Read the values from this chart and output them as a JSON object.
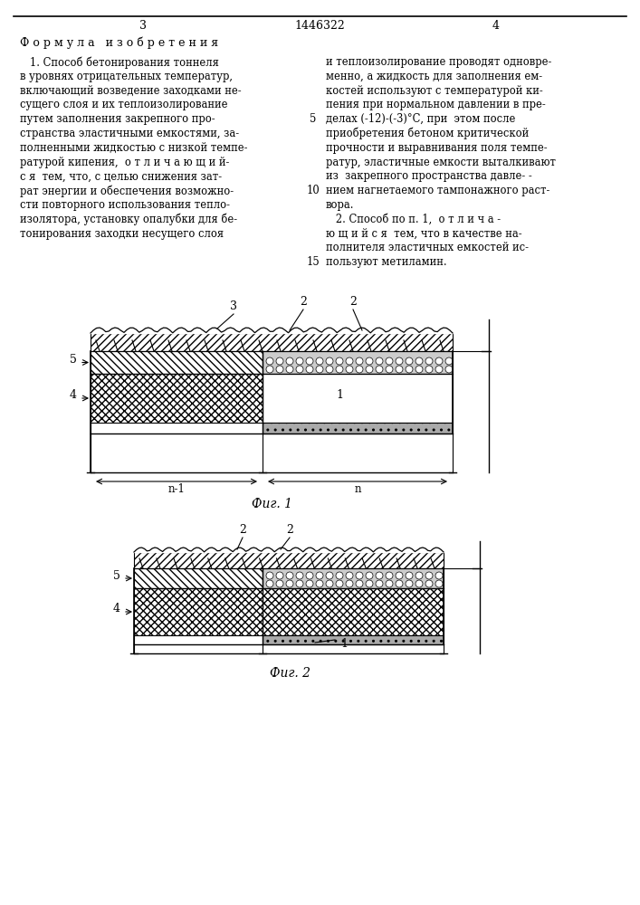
{
  "page_number_left": "3",
  "page_number_center": "1446322",
  "page_number_right": "4",
  "header_title": "Ф о р м у л а   и з о б р е т е н и я",
  "left_col": [
    "   1. Способ бетонирования тоннеля",
    "в уровнях отрицательных температур,",
    "включающий возведение заходками не-",
    "сущего слоя и их теплоизолирование",
    "путем заполнения закрепного про-",
    "странства эластичными емкостями, за-",
    "полненными жидкостью с низкой темпе-",
    "ратурой кипения,  о т л и ч а ю щ и й-",
    "с я  тем, что, с целью снижения зат-",
    "рат энергии и обеспечения возможно-",
    "сти повторного использования тепло-",
    "изолятора, установку опалубки для бе-",
    "тонирования заходки несущего слоя"
  ],
  "right_col": [
    "и теплоизолирование проводят одновре-",
    "менно, а жидкость для заполнения ем-",
    "костей используют с температурой ки-",
    "пения при нормальном давлении в пре-",
    "делах (-12)-(-3)°С, при  этом после",
    "приобретения бетоном критической",
    "прочности и выравнивания поля темпе-",
    "ратур, эластичные емкости выталкивают",
    "из  закрепного пространства давле- -",
    "нием нагнетаемого тампонажного раст-",
    "вора.",
    "   2. Способ по п. 1,  о т л и ч а -",
    "ю щ и й с я  тем, что в качестве на-",
    "полнителя эластичных емкостей ис-",
    "пользуют метиламин."
  ],
  "fig1_caption": "Фиг. 1",
  "fig2_caption": "Фиг. 2"
}
